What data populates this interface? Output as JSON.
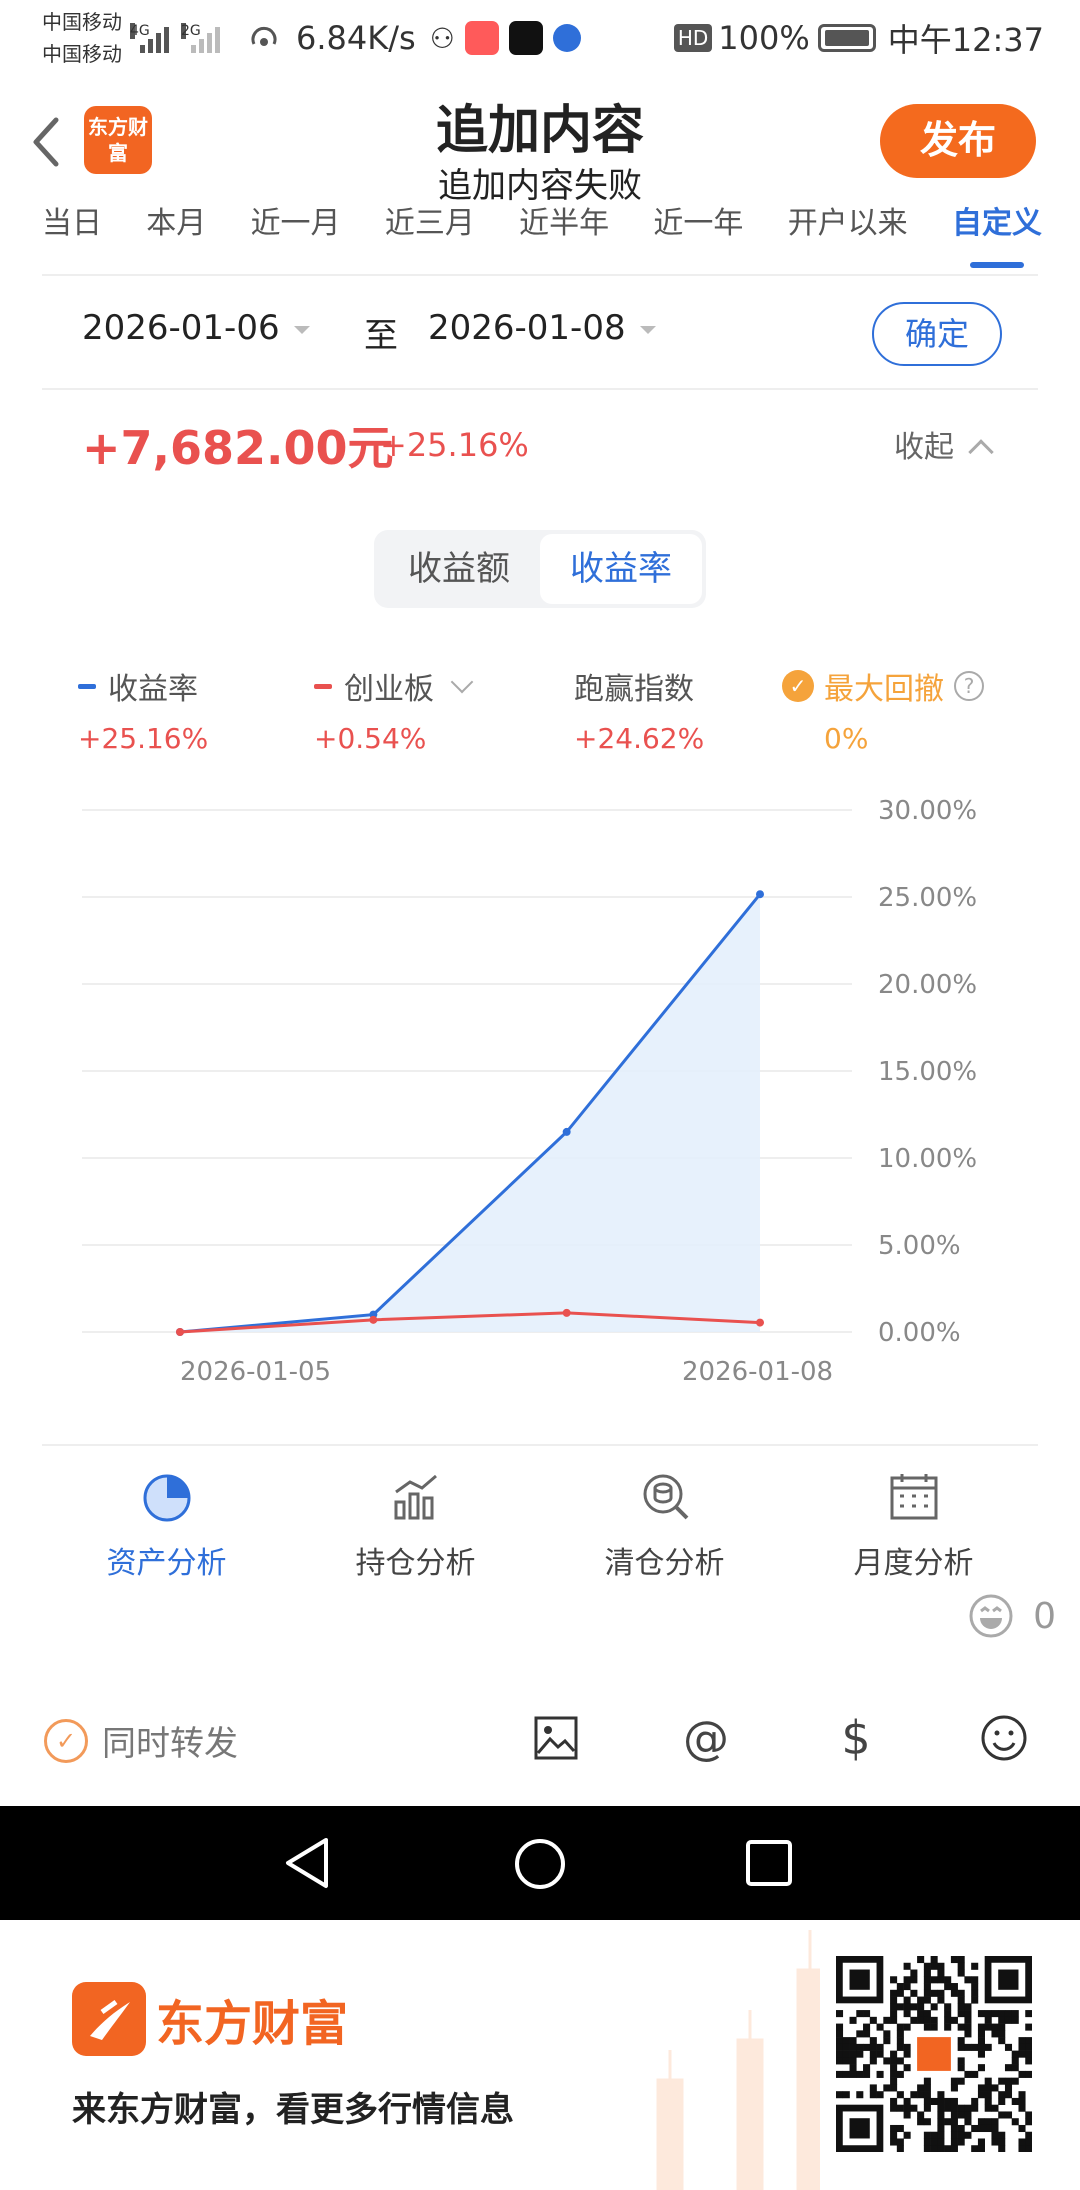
{
  "status_bar": {
    "carrier_1": "中国移动",
    "carrier_2": "中国移动",
    "net_1": "4G",
    "net_2": "2G",
    "speed": "6.84K/s",
    "battery": "100%",
    "time": "中午12:37"
  },
  "header": {
    "logo_text": "东方财富",
    "title": "追加内容",
    "subtitle": "追加内容失败",
    "publish_label": "发布"
  },
  "tabs": [
    {
      "label": "当日",
      "active": false
    },
    {
      "label": "本月",
      "active": false
    },
    {
      "label": "近一月",
      "active": false
    },
    {
      "label": "近三月",
      "active": false
    },
    {
      "label": "近半年",
      "active": false
    },
    {
      "label": "近一年",
      "active": false
    },
    {
      "label": "开户以来",
      "active": false
    },
    {
      "label": "自定义",
      "active": true
    }
  ],
  "date_range": {
    "start": "2026-01-06",
    "separator": "至",
    "end": "2026-01-08",
    "confirm_label": "确定"
  },
  "summary": {
    "amount": "+7,682.00元",
    "percent": "+25.16%",
    "collapse_label": "收起"
  },
  "segmented": {
    "option_1": "收益额",
    "option_2": "收益率",
    "active": "收益率"
  },
  "legend": [
    {
      "name": "收益率",
      "value": "+25.16%",
      "color": "#2f6fd9"
    },
    {
      "name": "创业板",
      "value": "+0.54%",
      "color": "#e9514f"
    },
    {
      "name": "跑赢指数",
      "value": "+24.62%",
      "color": "#e9514f"
    },
    {
      "name": "最大回撤",
      "value": "0%",
      "color": "#f5a33b"
    }
  ],
  "chart_data": {
    "type": "line",
    "x": [
      "2026-01-05",
      "2026-01-06",
      "2026-01-07",
      "2026-01-08"
    ],
    "x_tick_labels": [
      "2026-01-05",
      "2026-01-08"
    ],
    "series": [
      {
        "name": "收益率",
        "values": [
          0.0,
          1.0,
          11.5,
          25.16
        ],
        "color": "#2f6fd9",
        "area": true
      },
      {
        "name": "创业板",
        "values": [
          0.0,
          0.7,
          1.1,
          0.54
        ],
        "color": "#e9514f",
        "area": false
      }
    ],
    "y_ticks": [
      "30.00%",
      "25.00%",
      "20.00%",
      "15.00%",
      "10.00%",
      "5.00%",
      "0.00%"
    ],
    "ylim": [
      0,
      30
    ],
    "grid": true,
    "legend_position": "top"
  },
  "analysis_nav": [
    {
      "label": "资产分析",
      "icon": "pie-chart-icon",
      "active": true
    },
    {
      "label": "持仓分析",
      "icon": "bar-chart-icon",
      "active": false
    },
    {
      "label": "清仓分析",
      "icon": "search-coins-icon",
      "active": false
    },
    {
      "label": "月度分析",
      "icon": "calendar-icon",
      "active": false
    }
  ],
  "emoji_count": "0",
  "composer": {
    "forward_label": "同时转发"
  },
  "banner": {
    "brand": "东方财富",
    "slogan": "来东方财富，看更多行情信息"
  }
}
